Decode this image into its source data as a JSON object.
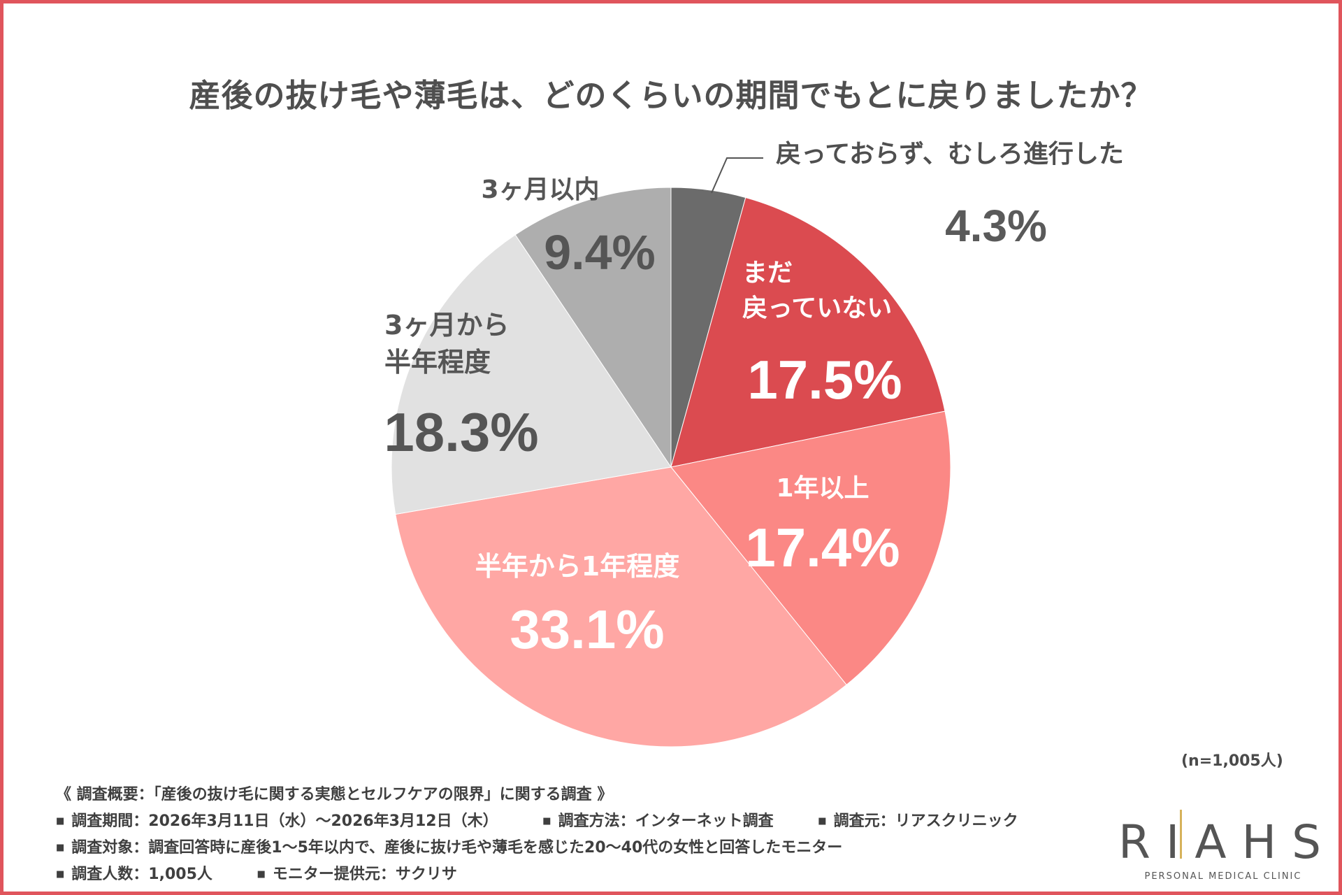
{
  "title": "産後の抜け毛や薄毛は、どのくらいの期間でもとに戻りましたか？",
  "sample_note": "(n=1,005人)",
  "colors": {
    "frame": "#e0555c",
    "slices": [
      "#6b6b6b",
      "#db4b50",
      "#fb8885",
      "#ffa7a4",
      "#e1e1e1",
      "#aeaeae"
    ]
  },
  "chart_data": {
    "type": "pie",
    "start": "12 o'clock",
    "direction": "clockwise",
    "slices": [
      {
        "label": "戻っておらず、むしろ進行した",
        "value": 4.3,
        "value_text": "4.3%"
      },
      {
        "label": "まだ\n戻っていない",
        "value": 17.5,
        "value_text": "17.5%"
      },
      {
        "label": "1年以上",
        "value": 17.4,
        "value_text": "17.4%"
      },
      {
        "label": "半年から1年程度",
        "value": 33.1,
        "value_text": "33.1%"
      },
      {
        "label": "3ヶ月から\n半年程度",
        "value": 18.3,
        "value_text": "18.3%"
      },
      {
        "label": "3ヶ月以内",
        "value": 9.4,
        "value_text": "9.4%"
      }
    ]
  },
  "footer": {
    "summary": "《 調査概要：「産後の抜け毛に関する実態とセルフケアの限界」に関する調査 》",
    "period": "調査期間：2026年3月11日（水）〜2026年3月12日（木）",
    "method": "調査方法：インターネット調査",
    "source": "調査元：リアスクリニック",
    "target": "調査対象：調査回答時に産後1〜5年以内で、産後に抜け毛や薄毛を感じた20〜40代の女性と回答したモニター",
    "count": "調査人数：1,005人",
    "provider": "モニター提供元：サクリサ"
  },
  "logo": {
    "name": "RIAHS",
    "tagline": "PERSONAL MEDICAL CLINIC"
  }
}
